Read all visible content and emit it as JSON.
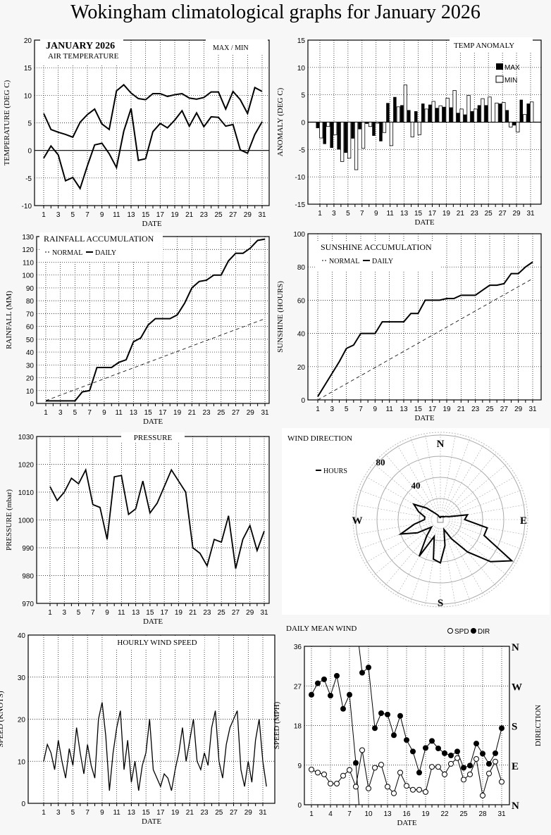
{
  "title": "Wokingham climatological graphs for January 2026",
  "chart_data": [
    {
      "id": "temperature",
      "type": "line",
      "title": "JANUARY 2026",
      "subtitle": "AIR TEMPERATURE",
      "legend": [
        "MAX / MIN"
      ],
      "xlabel": "DATE",
      "ylabel": "TEMPERATURE (DEG C)",
      "ylim": [
        -10,
        20
      ],
      "yticks": [
        -10,
        -5,
        0,
        5,
        10,
        15,
        20
      ],
      "xticks": [
        1,
        3,
        5,
        7,
        9,
        11,
        13,
        15,
        17,
        19,
        21,
        23,
        25,
        27,
        29,
        31
      ],
      "series": [
        {
          "name": "MAX",
          "values": [
            6.7,
            3.8,
            3.3,
            2.9,
            2.4,
            5.1,
            6.5,
            7.5,
            4.8,
            3.8,
            10.8,
            11.9,
            10.4,
            9.4,
            9.2,
            10.3,
            10.3,
            9.8,
            10.1,
            10.3,
            9.5,
            9.3,
            9.6,
            10.6,
            10.6,
            7.5,
            10.7,
            9.2,
            6.7,
            11.4,
            10.7
          ]
        },
        {
          "name": "MIN",
          "values": [
            -1.4,
            0.8,
            -0.8,
            -5.5,
            -4.9,
            -6.9,
            -2.8,
            1.0,
            1.3,
            -0.6,
            -3.1,
            3.5,
            7.6,
            -1.8,
            -1.5,
            3.4,
            4.9,
            4.1,
            5.5,
            7.2,
            4.4,
            6.8,
            4.3,
            6.1,
            6.0,
            4.4,
            4.7,
            0.1,
            -0.5,
            2.9,
            5.2
          ]
        }
      ]
    },
    {
      "id": "anomaly",
      "type": "bar",
      "title": "TEMP ANOMALY",
      "legend": [
        "MAX",
        "MIN"
      ],
      "xlabel": "DATE",
      "ylabel": "ANOMALY (DEG C)",
      "ylim": [
        -15,
        15
      ],
      "yticks": [
        -15,
        -10,
        -5,
        0,
        5,
        10,
        15
      ],
      "xticks": [
        1,
        3,
        5,
        7,
        9,
        11,
        13,
        15,
        17,
        19,
        21,
        23,
        25,
        27,
        29,
        31
      ],
      "series": [
        {
          "name": "MAX",
          "values": [
            -1.1,
            -4.0,
            -4.7,
            -5.0,
            -5.6,
            -3.0,
            -1.3,
            -0.3,
            -2.5,
            -3.5,
            3.5,
            4.6,
            3.1,
            2.2,
            2.0,
            3.4,
            3.2,
            2.6,
            2.8,
            2.7,
            1.7,
            1.4,
            2.0,
            3.1,
            3.1,
            0,
            3.4,
            2.2,
            -0.6,
            4.1,
            3.4
          ]
        },
        {
          "name": "MIN",
          "values": [
            -2.9,
            -0.8,
            -2.3,
            -7.2,
            -6.6,
            -8.7,
            -4.8,
            -0.8,
            -0.2,
            -1.9,
            -4.3,
            2.8,
            6.8,
            -2.7,
            -2.3,
            2.4,
            3.8,
            3.0,
            4.4,
            5.8,
            2.4,
            4.9,
            2.4,
            4.3,
            4.6,
            3.5,
            3.6,
            -0.9,
            -1.8,
            1.4,
            3.7
          ]
        }
      ]
    },
    {
      "id": "rainfall",
      "type": "line",
      "title": "RAINFALL ACCUMULATION",
      "legend": [
        "NORMAL",
        "DAILY"
      ],
      "xlabel": "DATE",
      "ylabel": "RAINFALL (MM)",
      "ylim": [
        0,
        130
      ],
      "yticks": [
        0,
        10,
        20,
        30,
        40,
        50,
        60,
        70,
        80,
        90,
        100,
        110,
        120,
        130
      ],
      "xticks": [
        1,
        3,
        5,
        7,
        9,
        11,
        13,
        15,
        17,
        19,
        21,
        23,
        25,
        27,
        29,
        31
      ],
      "normal": [
        2.2,
        66
      ],
      "series": [
        {
          "name": "DAILY",
          "values": [
            2,
            2,
            2,
            2,
            2,
            9,
            10,
            28,
            28,
            28,
            32,
            34,
            48,
            51,
            61,
            66,
            66,
            66,
            69,
            78,
            90,
            95,
            96,
            100,
            100,
            111,
            117,
            117,
            121,
            127,
            128
          ]
        }
      ]
    },
    {
      "id": "sunshine",
      "type": "line",
      "title": "SUNSHINE ACCUMULATION",
      "legend": [
        "NORMAL",
        "DAILY"
      ],
      "xlabel": "DATE",
      "ylabel": "SUNSHINE (HOURS)",
      "ylim": [
        0,
        100
      ],
      "yticks": [
        0,
        20,
        40,
        60,
        80,
        100
      ],
      "xticks": [
        1,
        3,
        5,
        7,
        9,
        11,
        13,
        15,
        17,
        19,
        21,
        23,
        25,
        27,
        29,
        31
      ],
      "normal": [
        0,
        73
      ],
      "series": [
        {
          "name": "DAILY",
          "values": [
            2,
            9,
            16,
            23,
            31,
            33,
            40,
            40,
            40,
            47,
            47,
            47,
            47,
            52,
            52,
            60,
            60,
            60,
            61,
            61,
            63,
            63,
            63,
            66,
            69,
            69,
            70,
            76,
            76,
            80,
            83
          ]
        }
      ]
    },
    {
      "id": "pressure",
      "type": "line",
      "title": "PRESSURE",
      "xlabel": "DATE",
      "ylabel": "PRESSURE (mbar)",
      "ylim": [
        970,
        1030
      ],
      "yticks": [
        970,
        980,
        990,
        1000,
        1010,
        1020,
        1030
      ],
      "xticks": [
        1,
        3,
        5,
        7,
        9,
        11,
        13,
        15,
        17,
        19,
        21,
        23,
        25,
        27,
        29,
        31
      ],
      "series": [
        {
          "name": "PRESSURE",
          "values": [
            1012,
            1007,
            1010,
            1015,
            1013,
            1018,
            1005.5,
            1004.5,
            993,
            1015.5,
            1016,
            1002,
            1004,
            1014,
            1002.5,
            1006,
            1012,
            1018,
            1014,
            1010,
            990,
            988,
            983.5,
            993,
            992,
            1001.5,
            982.5,
            993,
            998,
            989,
            996
          ]
        }
      ]
    },
    {
      "id": "wind_direction",
      "type": "polar",
      "title": "WIND DIRECTION",
      "legend": [
        "HOURS"
      ],
      "compass": [
        "N",
        "E",
        "S",
        "W"
      ],
      "ring_labels": [
        "40",
        "80"
      ],
      "rmax": 80,
      "bearings_step_deg": 10,
      "values": [
        2,
        3,
        3,
        3,
        4,
        4,
        6,
        8,
        26,
        23,
        45,
        44,
        78,
        62,
        40,
        21,
        10,
        25,
        41,
        38,
        17,
        40,
        20,
        11,
        25,
        40,
        25,
        15,
        15,
        22,
        29,
        17,
        8,
        5,
        3,
        2
      ]
    },
    {
      "id": "hourly_wind_speed",
      "type": "line",
      "title": "HOURLY WIND SPEED",
      "xlabel": "DATE",
      "ylabel": "SPEED (KNOTS)",
      "ylim": [
        0,
        40
      ],
      "yticks": [
        0,
        10,
        20,
        30,
        40
      ],
      "xticks": [
        1,
        3,
        5,
        7,
        9,
        11,
        13,
        15,
        17,
        19,
        21,
        23,
        25,
        27,
        29,
        31
      ],
      "sample_step_days": 0.5,
      "series": [
        {
          "name": "SPEED",
          "values": [
            10,
            14,
            12,
            8,
            15,
            10,
            6,
            13,
            9,
            18,
            12,
            7,
            14,
            9,
            6,
            20,
            24,
            16,
            3,
            12,
            18,
            22,
            8,
            15,
            5,
            10,
            3,
            9,
            12,
            20,
            8,
            6,
            4,
            7,
            6,
            3,
            8,
            12,
            18,
            10,
            15,
            20,
            10,
            8,
            12,
            9,
            18,
            22,
            10,
            6,
            14,
            18,
            20,
            22,
            8,
            4,
            10,
            5,
            15,
            20,
            10,
            4
          ]
        }
      ]
    },
    {
      "id": "daily_mean_wind",
      "type": "scatter",
      "title": "DAILY MEAN WIND",
      "legend": [
        "SPD",
        "DIR"
      ],
      "xlabel": "DATE",
      "ylabel": "SPEED (MPH)",
      "y2label": "DIRECTION",
      "ylim": [
        0,
        36
      ],
      "yticks": [
        0,
        9,
        18,
        27,
        36
      ],
      "y2ticks": [
        "N",
        "E",
        "S",
        "W",
        "N"
      ],
      "xticks": [
        1,
        4,
        7,
        10,
        13,
        16,
        19,
        22,
        25,
        28,
        31
      ],
      "series": [
        {
          "name": "SPD",
          "values": [
            8,
            7.3,
            6.9,
            4.8,
            4.8,
            6.6,
            7.9,
            4.1,
            12.4,
            3.7,
            8.4,
            9.1,
            4.1,
            2.6,
            7.3,
            4.3,
            3.4,
            3.4,
            2.9,
            8.6,
            8.6,
            6.9,
            9.3,
            10.6,
            5.7,
            6.9,
            10.4,
            2.1,
            7.1,
            9.8,
            5.2
          ]
        },
        {
          "name": "DIR",
          "unit": "degrees",
          "values": [
            250,
            276,
            285,
            248,
            293,
            218,
            250,
            95,
            300,
            312,
            174,
            208,
            205,
            158,
            202,
            147,
            121,
            73,
            129,
            145,
            128,
            117,
            112,
            121,
            84,
            89,
            139,
            116,
            93,
            117,
            174
          ]
        }
      ]
    }
  ]
}
